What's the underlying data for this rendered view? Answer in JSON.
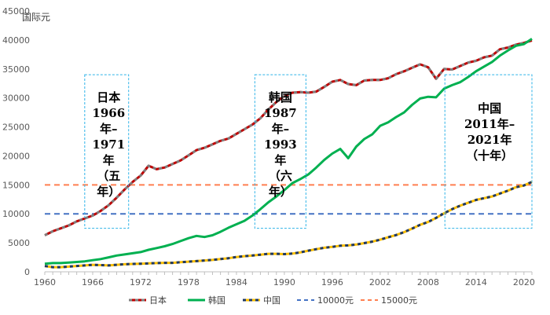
{
  "chart_data": {
    "type": "line",
    "unit_label": "国际元",
    "xlim": [
      1960,
      2021
    ],
    "ylim": [
      0,
      45000
    ],
    "x_ticks": [
      "1960",
      "1966",
      "1972",
      "1978",
      "1984",
      "1990",
      "1996",
      "2002",
      "2008",
      "2014",
      "2020"
    ],
    "y_ticks": [
      "0",
      "5000",
      "10000",
      "15000",
      "20000",
      "25000",
      "30000",
      "35000",
      "40000",
      "45000"
    ],
    "x": [
      1960,
      1961,
      1962,
      1963,
      1964,
      1965,
      1966,
      1967,
      1968,
      1969,
      1970,
      1971,
      1972,
      1973,
      1974,
      1975,
      1976,
      1977,
      1978,
      1979,
      1980,
      1981,
      1982,
      1983,
      1984,
      1985,
      1986,
      1987,
      1988,
      1989,
      1990,
      1991,
      1992,
      1993,
      1994,
      1995,
      1996,
      1997,
      1998,
      1999,
      2000,
      2001,
      2002,
      2003,
      2004,
      2005,
      2006,
      2007,
      2008,
      2009,
      2010,
      2011,
      2012,
      2013,
      2014,
      2015,
      2016,
      2017,
      2018,
      2019,
      2020,
      2021
    ],
    "series": [
      {
        "name": "日本",
        "color": "#c00000",
        "dash": "#7f7f7f",
        "values": [
          6300,
          7000,
          7500,
          8000,
          8700,
          9200,
          9700,
          10500,
          11500,
          12800,
          14200,
          15500,
          16600,
          18300,
          17700,
          18000,
          18600,
          19200,
          20100,
          21000,
          21400,
          22000,
          22600,
          23000,
          23800,
          24600,
          25400,
          26500,
          28000,
          29300,
          30300,
          30900,
          31000,
          30900,
          31100,
          31900,
          32800,
          33100,
          32400,
          32200,
          33000,
          33100,
          33100,
          33400,
          34100,
          34600,
          35200,
          35800,
          35300,
          33300,
          35000,
          34900,
          35500,
          36100,
          36400,
          37000,
          37300,
          38400,
          38700,
          39200,
          39500,
          39900
        ]
      },
      {
        "name": "韩国",
        "color": "#00b050",
        "values": [
          1400,
          1500,
          1500,
          1600,
          1700,
          1800,
          2000,
          2200,
          2500,
          2800,
          3000,
          3200,
          3400,
          3800,
          4100,
          4400,
          4800,
          5300,
          5800,
          6200,
          6000,
          6300,
          6900,
          7600,
          8200,
          8800,
          9700,
          10800,
          12000,
          13000,
          14100,
          15300,
          16000,
          16800,
          18000,
          19300,
          20400,
          21200,
          19600,
          21600,
          22900,
          23700,
          25200,
          25800,
          26700,
          27500,
          28800,
          29900,
          30200,
          30100,
          31600,
          32200,
          32700,
          33600,
          34600,
          35400,
          36200,
          37300,
          38200,
          39000,
          39300,
          40200
        ]
      },
      {
        "name": "中国",
        "color": "#ffc000",
        "dash": "#1f3864",
        "values": [
          1000,
          800,
          800,
          900,
          1000,
          1100,
          1200,
          1150,
          1100,
          1200,
          1300,
          1350,
          1400,
          1450,
          1500,
          1550,
          1550,
          1650,
          1750,
          1850,
          1950,
          2050,
          2200,
          2350,
          2550,
          2700,
          2800,
          2950,
          3100,
          3100,
          3050,
          3150,
          3350,
          3650,
          3900,
          4150,
          4300,
          4500,
          4550,
          4700,
          4950,
          5200,
          5550,
          5950,
          6350,
          6850,
          7450,
          8100,
          8600,
          9300,
          10100,
          10800,
          11400,
          11900,
          12400,
          12700,
          13000,
          13500,
          14000,
          14600,
          14900,
          15500
        ]
      }
    ],
    "reference_lines": [
      {
        "name": "10000元",
        "value": 10000,
        "color": "#4472c4"
      },
      {
        "name": "15000元",
        "value": 15000,
        "color": "#ff7f50"
      }
    ],
    "annotations": [
      {
        "id": "japan",
        "x0": 1965.0,
        "x1": 1970.5,
        "y0": 34000,
        "y1": 7500,
        "cx": 1968.0,
        "lines": [
          "日本",
          "1966",
          "年–",
          "1971",
          "年",
          "（五",
          "年）"
        ]
      },
      {
        "id": "korea",
        "x0": 1986.3,
        "x1": 1992.7,
        "y0": 34000,
        "y1": 7500,
        "cx": 1989.5,
        "lines": [
          "韩国",
          "1987",
          "年–",
          "1993",
          "年",
          "（六",
          "年）"
        ]
      },
      {
        "id": "china",
        "x0": 2010.1,
        "x1": 2021.0,
        "y0": 34000,
        "y1": 7500,
        "cx": 2015.7,
        "lines": [
          "中国",
          "2011年–",
          "2021年",
          "（十年）"
        ],
        "top_gap": 48
      }
    ],
    "legend": {
      "position": "bottom"
    }
  }
}
